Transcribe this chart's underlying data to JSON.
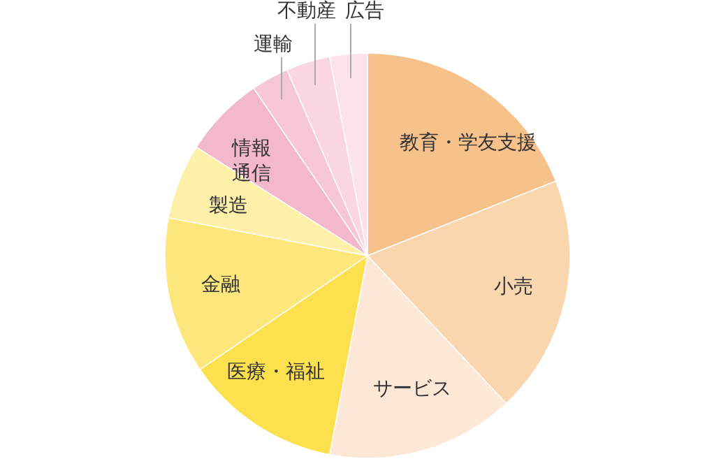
{
  "chart_data": {
    "type": "pie",
    "categories": [
      "教育・学友支援",
      "小売",
      "サービス",
      "医療・福祉",
      "金融",
      "製造",
      "情報通信",
      "運輸",
      "不動産",
      "広告"
    ],
    "values": [
      19,
      19,
      15,
      12.5,
      12.5,
      6,
      6.5,
      3,
      3.5,
      3
    ],
    "colors": [
      "#f7c18b",
      "#f9d6ad",
      "#fde8d8",
      "#fde04e",
      "#fde67c",
      "#fef0a9",
      "#f3b8cb",
      "#f6c8d6",
      "#f9d6e2",
      "#fbe2eb"
    ]
  }
}
